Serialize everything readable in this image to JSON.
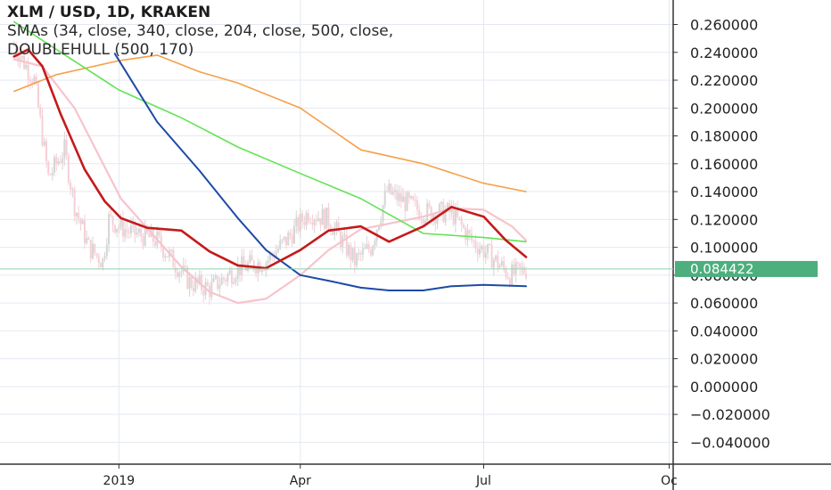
{
  "header": {
    "title": "XLM / USD, 1D, KRAKEN",
    "indicators": [
      "SMAs (34, close, 340, close, 204, close, 500, close,",
      "DOUBLEHULL (500, 170)"
    ]
  },
  "price_tag": {
    "label": "0.084422",
    "color": "#4caf7d"
  },
  "colors": {
    "up_candle": "#d5d5d5",
    "down_candle": "#f6cfd6",
    "sma_orange": "#f5a04a",
    "sma_green": "#63e356",
    "sma_blue": "#1c4aa6",
    "hull_red": "#c41a1a",
    "hull_pink": "#f7c4cc",
    "axis_line": "#333333",
    "grid": "#e3e9f0"
  },
  "chart_data": {
    "type": "line",
    "ylim": [
      -0.045,
      0.27
    ],
    "y_ticks": [
      "0.260000",
      "0.240000",
      "0.220000",
      "0.200000",
      "0.180000",
      "0.160000",
      "0.140000",
      "0.120000",
      "0.100000",
      "0.080000",
      "0.060000",
      "0.040000",
      "0.020000",
      "0.000000",
      "−0.020000",
      "−0.040000"
    ],
    "x_ticks": [
      "2019",
      "Apr",
      "Jul",
      "Oc"
    ],
    "last_price": 0.084422,
    "series": [
      {
        "name": "SMA 34",
        "color_key": "hull_red",
        "x": [
          "2018-11-10",
          "2018-11-17",
          "2018-11-24",
          "2018-12-03",
          "2018-12-15",
          "2018-12-25",
          "2019-01-02",
          "2019-01-15",
          "2019-02-01",
          "2019-02-15",
          "2019-03-01",
          "2019-03-15",
          "2019-04-01",
          "2019-04-15",
          "2019-05-01",
          "2019-05-15",
          "2019-06-01",
          "2019-06-15",
          "2019-07-01",
          "2019-07-12",
          "2019-07-22"
        ],
        "y": [
          0.237,
          0.242,
          0.23,
          0.196,
          0.156,
          0.133,
          0.121,
          0.114,
          0.112,
          0.097,
          0.087,
          0.085,
          0.098,
          0.112,
          0.115,
          0.104,
          0.115,
          0.129,
          0.122,
          0.105,
          0.093
        ]
      },
      {
        "name": "Hull",
        "color_key": "hull_pink",
        "x": [
          "2018-11-10",
          "2018-11-24",
          "2018-12-10",
          "2019-01-02",
          "2019-02-01",
          "2019-02-15",
          "2019-03-01",
          "2019-03-15",
          "2019-04-01",
          "2019-04-15",
          "2019-05-01",
          "2019-05-15",
          "2019-06-01",
          "2019-06-15",
          "2019-07-01",
          "2019-07-15",
          "2019-07-22"
        ],
        "y": [
          0.235,
          0.23,
          0.2,
          0.135,
          0.086,
          0.068,
          0.06,
          0.063,
          0.08,
          0.098,
          0.113,
          0.117,
          0.122,
          0.128,
          0.127,
          0.115,
          0.105
        ]
      },
      {
        "name": "SMA 340",
        "color_key": "sma_orange",
        "x": [
          "2018-11-10",
          "2018-12-01",
          "2019-01-01",
          "2019-01-20",
          "2019-02-10",
          "2019-03-01",
          "2019-04-01",
          "2019-05-01",
          "2019-06-01",
          "2019-07-01",
          "2019-07-22"
        ],
        "y": [
          0.212,
          0.224,
          0.234,
          0.238,
          0.226,
          0.218,
          0.2,
          0.17,
          0.16,
          0.146,
          0.14
        ]
      },
      {
        "name": "SMA 204",
        "color_key": "sma_green",
        "x": [
          "2018-11-10",
          "2018-12-01",
          "2019-01-01",
          "2019-02-01",
          "2019-03-01",
          "2019-04-01",
          "2019-05-01",
          "2019-06-01",
          "2019-07-01",
          "2019-07-22"
        ],
        "y": [
          0.262,
          0.242,
          0.213,
          0.193,
          0.172,
          0.153,
          0.135,
          0.11,
          0.107,
          0.104
        ]
      },
      {
        "name": "SMA 500",
        "color_key": "sma_blue",
        "x": [
          "2018-12-30",
          "2019-01-20",
          "2019-02-10",
          "2019-03-01",
          "2019-03-15",
          "2019-04-01",
          "2019-04-15",
          "2019-05-01",
          "2019-05-15",
          "2019-06-01",
          "2019-06-15",
          "2019-07-01",
          "2019-07-22"
        ],
        "y": [
          0.239,
          0.19,
          0.155,
          0.121,
          0.098,
          0.08,
          0.076,
          0.071,
          0.069,
          0.069,
          0.072,
          0.073,
          0.072
        ]
      },
      {
        "name": "Price",
        "color_key": "up_candle",
        "x": [
          "2018-11-10",
          "2018-11-20",
          "2018-11-27",
          "2018-12-05",
          "2018-12-10",
          "2018-12-17",
          "2018-12-24",
          "2018-12-27",
          "2019-01-05",
          "2019-01-20",
          "2019-02-05",
          "2019-02-15",
          "2019-03-01",
          "2019-03-15",
          "2019-03-25",
          "2019-04-05",
          "2019-04-15",
          "2019-04-28",
          "2019-05-06",
          "2019-05-14",
          "2019-05-20",
          "2019-06-01",
          "2019-06-15",
          "2019-06-25",
          "2019-07-05",
          "2019-07-14",
          "2019-07-22"
        ],
        "y": [
          0.245,
          0.22,
          0.15,
          0.17,
          0.13,
          0.1,
          0.09,
          0.12,
          0.112,
          0.105,
          0.075,
          0.07,
          0.085,
          0.09,
          0.105,
          0.125,
          0.12,
          0.09,
          0.1,
          0.14,
          0.135,
          0.125,
          0.125,
          0.105,
          0.093,
          0.08,
          0.084
        ]
      }
    ]
  }
}
